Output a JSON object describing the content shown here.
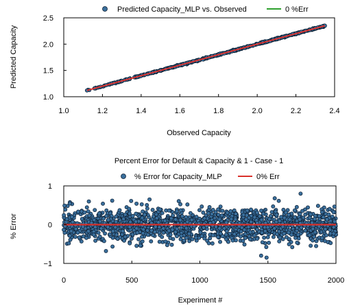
{
  "colors": {
    "marker_fill": "#3a6f9c",
    "marker_edge": "#0d1f33",
    "line_red": "#d9302a",
    "line_green": "#2ca02c"
  },
  "chart_data": [
    {
      "type": "scatter",
      "title": "",
      "legend": {
        "position": "top",
        "entries": [
          "Predicted Capacity_MLP vs. Observed",
          "0 %Err"
        ]
      },
      "xlabel": "Observed Capacity",
      "ylabel": "Predicted Capacity",
      "xlim": [
        1.0,
        2.4
      ],
      "ylim": [
        1.0,
        2.5
      ],
      "xticks": [
        "1.0",
        "1.2",
        "1.4",
        "1.6",
        "1.8",
        "2.0",
        "2.2",
        "2.4"
      ],
      "yticks": [
        "1.0",
        "1.5",
        "2.0",
        "2.5"
      ],
      "grid": false,
      "series": [
        {
          "name": "Predicted Capacity_MLP vs. Observed",
          "kind": "scatter",
          "x_range": [
            1.12,
            2.35
          ],
          "y_equals_x": true,
          "point_count_approx": 2000,
          "sample_x": [
            1.12,
            1.16,
            1.19,
            1.22,
            1.26,
            1.3,
            1.34,
            1.38,
            1.42,
            1.46,
            1.5,
            1.55,
            1.6,
            1.65,
            1.7,
            1.75,
            1.8,
            1.85,
            1.9,
            1.95,
            2.0,
            2.05,
            2.1,
            2.15,
            2.2,
            2.25,
            2.3,
            2.35
          ],
          "sample_y": [
            1.12,
            1.16,
            1.19,
            1.22,
            1.26,
            1.3,
            1.34,
            1.38,
            1.42,
            1.46,
            1.5,
            1.55,
            1.6,
            1.65,
            1.7,
            1.75,
            1.8,
            1.85,
            1.9,
            1.95,
            2.0,
            2.05,
            2.1,
            2.15,
            2.2,
            2.25,
            2.3,
            2.35
          ]
        },
        {
          "name": "0 %Err",
          "kind": "line",
          "x": [
            1.12,
            2.35
          ],
          "y": [
            1.12,
            2.35
          ]
        }
      ]
    },
    {
      "type": "scatter",
      "title": "Percent Error for Default & Capacity & 1 - Case - 1",
      "legend": {
        "position": "top",
        "entries": [
          "% Error for Capacity_MLP",
          "0% Err"
        ]
      },
      "xlabel": "Experiment #",
      "ylabel": "% Error",
      "xlim": [
        0,
        2000
      ],
      "ylim": [
        -1,
        1
      ],
      "xticks": [
        "0",
        "500",
        "1000",
        "1500",
        "2000"
      ],
      "yticks": [
        "−1",
        "0",
        "1"
      ],
      "grid": false,
      "series": [
        {
          "name": "% Error for Capacity_MLP",
          "kind": "scatter",
          "x_range": [
            0,
            2000
          ],
          "y_typical_range": [
            -0.5,
            0.6
          ],
          "point_count_approx": 2000,
          "notable_points": [
            {
              "x": 1740,
              "y": 0.8
            },
            {
              "x": 1450,
              "y": -0.8
            },
            {
              "x": 1490,
              "y": -0.85
            },
            {
              "x": 1550,
              "y": 0.68
            },
            {
              "x": 630,
              "y": 0.65
            },
            {
              "x": 310,
              "y": -0.68
            }
          ]
        },
        {
          "name": "0% Err",
          "kind": "line",
          "x": [
            0,
            2000
          ],
          "y": [
            0,
            0
          ]
        }
      ]
    }
  ]
}
